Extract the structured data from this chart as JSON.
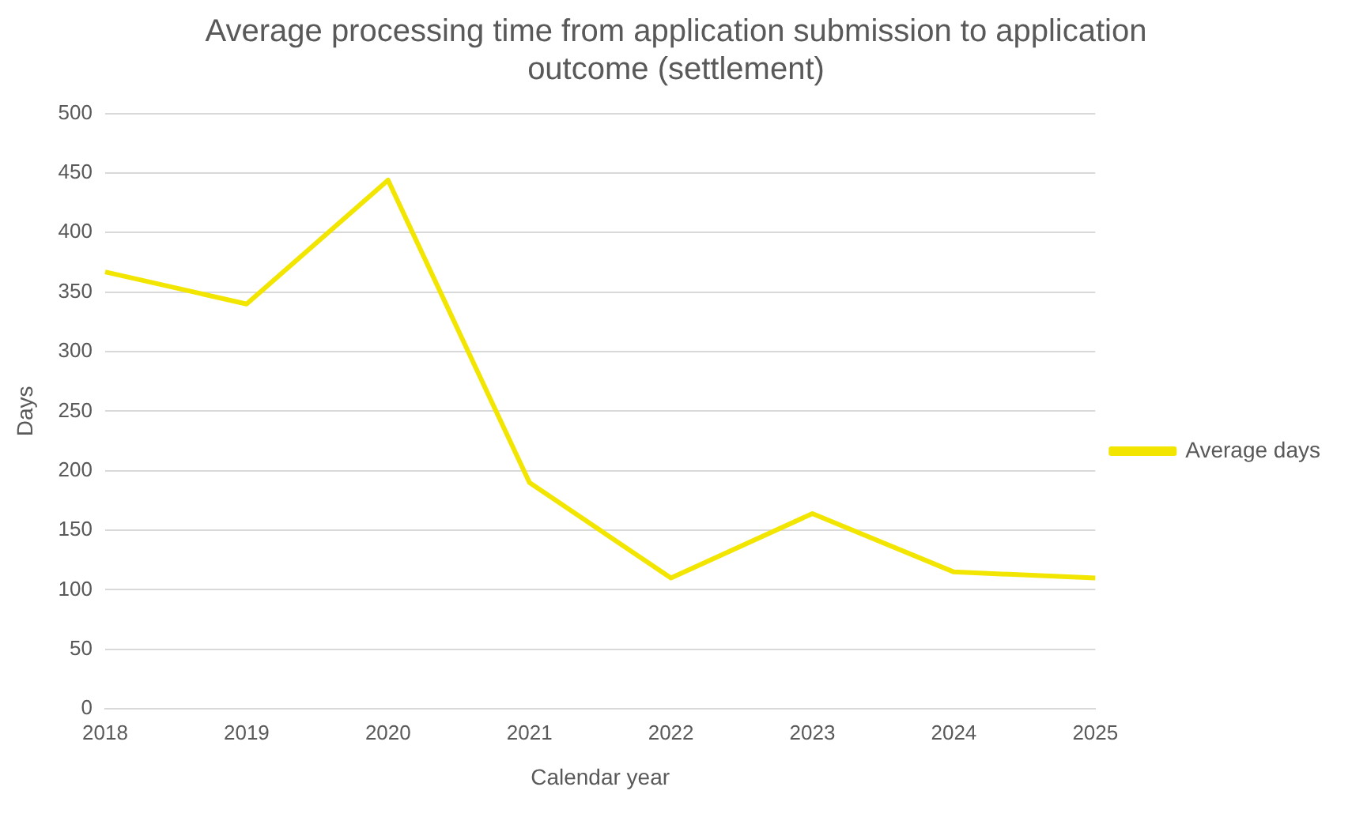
{
  "chart_data": {
    "type": "line",
    "title": "Average processing time from application submission to application outcome (settlement)",
    "xlabel": "Calendar year",
    "ylabel": "Days",
    "categories": [
      "2018",
      "2019",
      "2020",
      "2021",
      "2022",
      "2023",
      "2024",
      "2025"
    ],
    "series": [
      {
        "name": "Average days",
        "color": "#f2e600",
        "values": [
          367,
          340,
          444,
          190,
          110,
          164,
          115,
          110
        ]
      }
    ],
    "ylim": [
      0,
      500
    ],
    "yticks": [
      0,
      50,
      100,
      150,
      200,
      250,
      300,
      350,
      400,
      450,
      500
    ],
    "grid": "y",
    "legend": "right",
    "marker": "none",
    "line_style": "solid"
  }
}
